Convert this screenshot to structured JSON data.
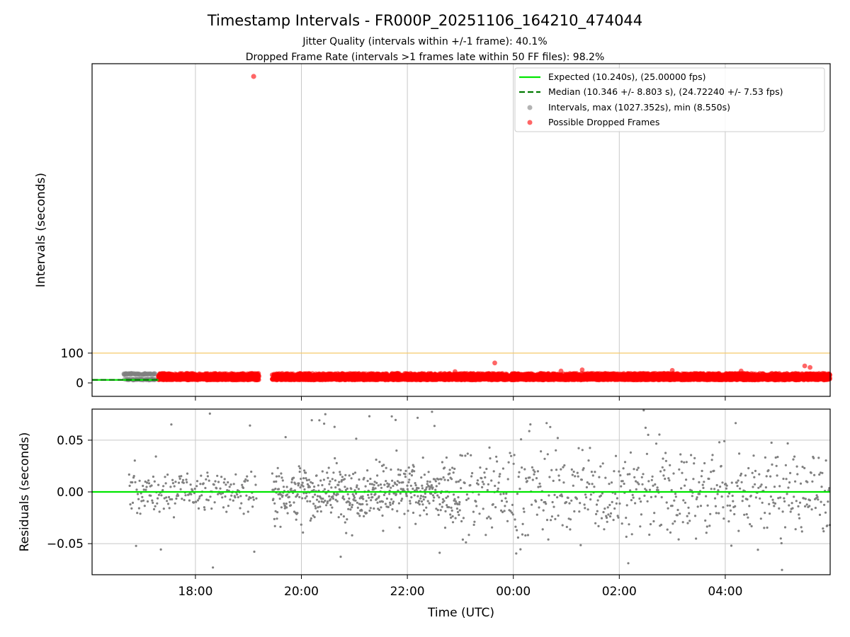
{
  "chart_data": {
    "type": "scatter",
    "title": "Timestamp Intervals - FR000P_20251106_164210_474044",
    "subtitle_lines": [
      "Jitter Quality (intervals within +/-1 frame): 40.1%",
      "Dropped Frame Rate (intervals >1 frames late within 50 FF files): 98.2%"
    ],
    "xlabel": "Time (UTC)",
    "x_ticks": [
      "18:00",
      "20:00",
      "22:00",
      "00:00",
      "02:00",
      "04:00"
    ],
    "x_tick_hours": [
      18,
      20,
      22,
      24,
      26,
      28
    ],
    "x_range_hours": [
      16.05,
      29.98
    ],
    "top_panel": {
      "ylabel": "Intervals (seconds)",
      "y_ticks": [
        100,
        0
      ],
      "ylim": [
        -45,
        1070
      ],
      "threshold_line": 100,
      "expected_interval": 10.24,
      "median_interval": 10.346,
      "legend": [
        "Expected (10.240s), (25.00000 fps)",
        "Median (10.346 +/- 8.803 s), (24.72240 +/- 7.53 fps)",
        "Intervals, max (1027.352s), min (8.550s)",
        "Possible Dropped Frames"
      ],
      "legend_position": "top-right",
      "max_outlier": {
        "hour": 19.1,
        "value": 1027.352
      },
      "notable_points": [
        {
          "hour": 23.65,
          "value": 67
        },
        {
          "hour": 29.5,
          "value": 57
        },
        {
          "hour": 29.6,
          "value": 52
        },
        {
          "hour": 25.3,
          "value": 44
        },
        {
          "hour": 27.0,
          "value": 42
        },
        {
          "hour": 28.3,
          "value": 40
        },
        {
          "hour": 22.9,
          "value": 38
        },
        {
          "hour": 24.9,
          "value": 40
        }
      ],
      "gray_region_hours": [
        16.65,
        17.25
      ],
      "red_segments_hours": [
        [
          17.3,
          19.2
        ],
        [
          19.45,
          29.98
        ]
      ],
      "typical_interval_range": [
        10,
        32
      ]
    },
    "bottom_panel": {
      "ylabel": "Residuals (seconds)",
      "y_ticks": [
        "0.05",
        "0.00",
        "−0.05"
      ],
      "y_tick_values": [
        0.05,
        0.0,
        -0.05
      ],
      "ylim": [
        -0.08,
        0.08
      ],
      "zero_line": 0.0
    },
    "colors": {
      "expected": "#00e600",
      "median": "#007a00",
      "intervals": "#808080",
      "dropped": "#ff0000",
      "threshold": "#f5c96a",
      "grid": "#c8c8c8"
    }
  }
}
